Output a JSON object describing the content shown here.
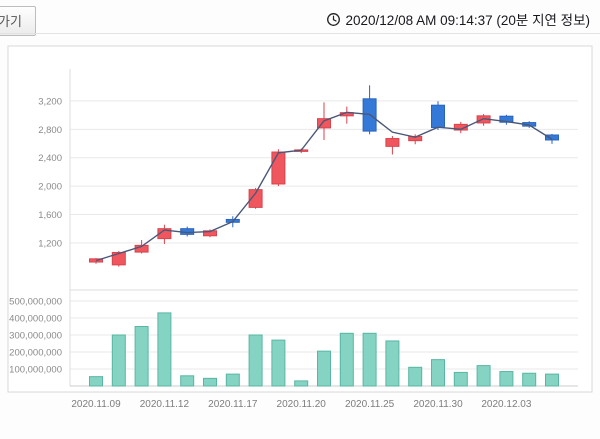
{
  "header": {
    "back_label": "가기",
    "timestamp": "2020/12/08 AM 09:14:37 (20분 지연 정보)"
  },
  "chart_data": {
    "type": "candlestick+volume",
    "title": "",
    "grid": true,
    "price_axis": {
      "range": [
        550,
        3650
      ],
      "ticks": [
        1200,
        1600,
        2000,
        2400,
        2800,
        3200
      ],
      "labels": [
        "1,200",
        "1,600",
        "2,000",
        "2,400",
        "2,800",
        "3,200"
      ]
    },
    "volume_axis": {
      "range": [
        0,
        520000000
      ],
      "ticks": [
        100000000,
        200000000,
        300000000,
        400000000,
        500000000
      ],
      "labels": [
        "100,000,000",
        "200,000,000",
        "300,000,000",
        "400,000,000",
        "500,000,000"
      ]
    },
    "x_tick_labels": [
      {
        "index": 0,
        "label": "2020.11.09"
      },
      {
        "index": 3,
        "label": "2020.11.12"
      },
      {
        "index": 6,
        "label": "2020.11.17"
      },
      {
        "index": 9,
        "label": "2020.11.20"
      },
      {
        "index": 12,
        "label": "2020.11.25"
      },
      {
        "index": 15,
        "label": "2020.11.30"
      },
      {
        "index": 18,
        "label": "2020.12.03"
      }
    ],
    "candles": [
      {
        "date": "2020.11.09",
        "open": 930,
        "high": 985,
        "low": 905,
        "close": 975,
        "volume": 55000000
      },
      {
        "date": "2020.11.10",
        "open": 890,
        "high": 1085,
        "low": 865,
        "close": 1065,
        "volume": 300000000
      },
      {
        "date": "2020.11.11",
        "open": 1070,
        "high": 1240,
        "low": 1050,
        "close": 1165,
        "volume": 350000000
      },
      {
        "date": "2020.11.12",
        "open": 1260,
        "high": 1455,
        "low": 1185,
        "close": 1400,
        "volume": 430000000
      },
      {
        "date": "2020.11.13",
        "open": 1400,
        "high": 1430,
        "low": 1290,
        "close": 1320,
        "volume": 60000000
      },
      {
        "date": "2020.11.16",
        "open": 1300,
        "high": 1390,
        "low": 1280,
        "close": 1370,
        "volume": 45000000
      },
      {
        "date": "2020.11.17",
        "open": 1530,
        "high": 1575,
        "low": 1420,
        "close": 1490,
        "volume": 70000000
      },
      {
        "date": "2020.11.18",
        "open": 1700,
        "high": 1975,
        "low": 1680,
        "close": 1950,
        "volume": 300000000
      },
      {
        "date": "2020.11.19",
        "open": 2030,
        "high": 2520,
        "low": 2000,
        "close": 2480,
        "volume": 270000000
      },
      {
        "date": "2020.11.20",
        "open": 2490,
        "high": 2530,
        "low": 2465,
        "close": 2510,
        "volume": 30000000
      },
      {
        "date": "2020.11.23",
        "open": 2820,
        "high": 3180,
        "low": 2650,
        "close": 2950,
        "volume": 205000000
      },
      {
        "date": "2020.11.24",
        "open": 2990,
        "high": 3120,
        "low": 2880,
        "close": 3035,
        "volume": 310000000
      },
      {
        "date": "2020.11.25",
        "open": 3230,
        "high": 3420,
        "low": 2730,
        "close": 2775,
        "volume": 310000000
      },
      {
        "date": "2020.11.26",
        "open": 2560,
        "high": 2705,
        "low": 2445,
        "close": 2670,
        "volume": 265000000
      },
      {
        "date": "2020.11.27",
        "open": 2640,
        "high": 2730,
        "low": 2590,
        "close": 2700,
        "volume": 110000000
      },
      {
        "date": "2020.11.30",
        "open": 3140,
        "high": 3195,
        "low": 2790,
        "close": 2825,
        "volume": 155000000
      },
      {
        "date": "2020.12.01",
        "open": 2790,
        "high": 2905,
        "low": 2745,
        "close": 2870,
        "volume": 80000000
      },
      {
        "date": "2020.12.02",
        "open": 2890,
        "high": 3015,
        "low": 2850,
        "close": 2990,
        "volume": 120000000
      },
      {
        "date": "2020.12.03",
        "open": 2985,
        "high": 3005,
        "low": 2865,
        "close": 2900,
        "volume": 85000000
      },
      {
        "date": "2020.12.04",
        "open": 2895,
        "high": 2915,
        "low": 2820,
        "close": 2845,
        "volume": 75000000
      },
      {
        "date": "2020.12.07",
        "open": 2720,
        "high": 2735,
        "low": 2595,
        "close": 2650,
        "volume": 70000000
      }
    ],
    "ma_line": [
      950,
      1050,
      1150,
      1380,
      1345,
      1360,
      1500,
      1900,
      2470,
      2505,
      2920,
      3040,
      3010,
      2760,
      2690,
      2830,
      2800,
      2950,
      2910,
      2860,
      2660
    ],
    "colors": {
      "up_fill": "#f0565e",
      "up_stroke": "#d8434c",
      "down_fill": "#3579d8",
      "down_stroke": "#2a63bb",
      "ma_line": "#4a5878",
      "volume_fill": "#85d4c3",
      "volume_stroke": "#58b6a2",
      "grid": "#e9e9e9",
      "axis_text": "#8a8a8a",
      "panel_border": "#d8d8d8"
    }
  }
}
